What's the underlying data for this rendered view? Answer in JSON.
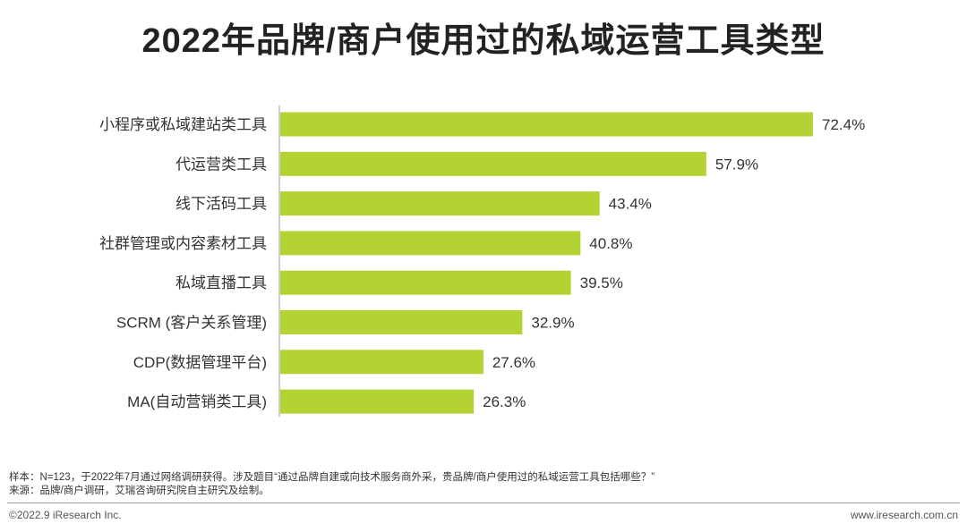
{
  "title": "2022年品牌/商户使用过的私域运营工具类型",
  "chart_data": {
    "type": "bar",
    "orientation": "horizontal",
    "categories": [
      "小程序或私域建站类工具",
      "代运营类工具",
      "线下活码工具",
      "社群管理或内容素材工具",
      "私域直播工具",
      "SCRM (客户关系管理)",
      "CDP(数据管理平台)",
      "MA(自动营销类工具)"
    ],
    "values": [
      72.4,
      57.9,
      43.4,
      40.8,
      39.5,
      32.9,
      27.6,
      26.3
    ],
    "value_labels": [
      "72.4%",
      "57.9%",
      "43.4%",
      "40.8%",
      "39.5%",
      "32.9%",
      "27.6%",
      "26.3%"
    ],
    "unit": "%",
    "bar_color": "#b3d334",
    "xlim": [
      0,
      100
    ],
    "grid": false,
    "legend": "none"
  },
  "notes": {
    "sample": "样本：N=123，于2022年7月通过网络调研获得。涉及题目“通过品牌自建或向技术服务商外采，贵品牌/商户使用过的私域运营工具包括哪些？”",
    "source": "来源：品牌/商户调研，艾瑞咨询研究院自主研究及绘制。"
  },
  "footer": {
    "copyright": "©2022.9 iResearch Inc.",
    "website": "www.iresearch.com.cn"
  }
}
